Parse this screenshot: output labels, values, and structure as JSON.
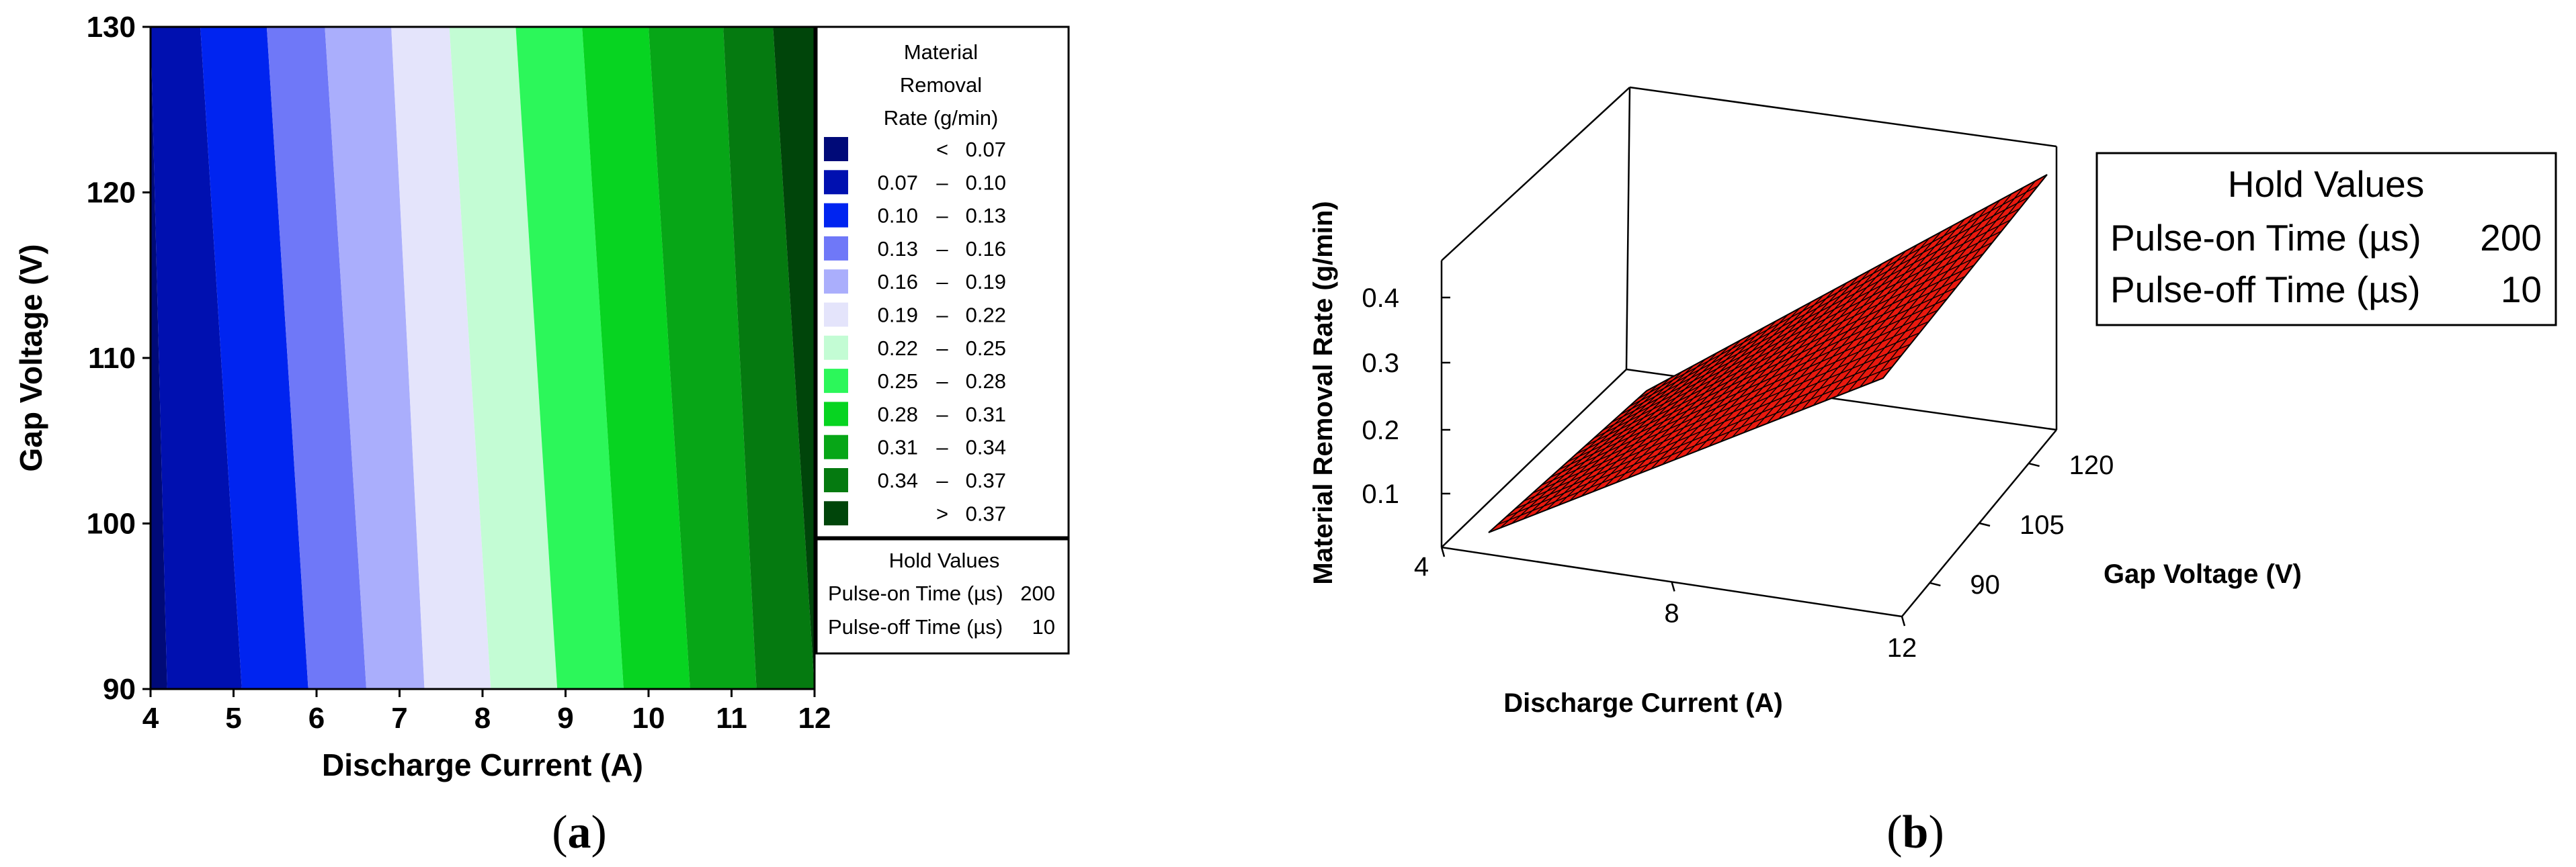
{
  "chart_data": [
    {
      "type": "heatmap",
      "subtype": "contour",
      "panel_label": "(a)",
      "panel_letter": "a",
      "xlabel": "Discharge Current (A)",
      "ylabel": "Gap Voltage (V)",
      "xlim": [
        4,
        12
      ],
      "ylim": [
        90,
        130
      ],
      "x_ticks": [
        "4",
        "5",
        "6",
        "7",
        "8",
        "9",
        "10",
        "11",
        "12"
      ],
      "y_ticks": [
        "90",
        "100",
        "110",
        "120",
        "130"
      ],
      "legend_title": [
        "Material",
        "Removal",
        "Rate (g/min)"
      ],
      "legend": [
        {
          "lo": "",
          "op": "<",
          "hi": "0.07",
          "color": "#000a78"
        },
        {
          "lo": "0.07",
          "op": "–",
          "hi": "0.10",
          "color": "#0010b0"
        },
        {
          "lo": "0.10",
          "op": "–",
          "hi": "0.13",
          "color": "#0024f0"
        },
        {
          "lo": "0.13",
          "op": "–",
          "hi": "0.16",
          "color": "#6f78f8"
        },
        {
          "lo": "0.16",
          "op": "–",
          "hi": "0.19",
          "color": "#aaaefc"
        },
        {
          "lo": "0.19",
          "op": "–",
          "hi": "0.22",
          "color": "#e4e4fb"
        },
        {
          "lo": "0.22",
          "op": "–",
          "hi": "0.25",
          "color": "#c3fcd4"
        },
        {
          "lo": "0.25",
          "op": "–",
          "hi": "0.28",
          "color": "#2cf75a"
        },
        {
          "lo": "0.28",
          "op": "–",
          "hi": "0.31",
          "color": "#07d421"
        },
        {
          "lo": "0.31",
          "op": "–",
          "hi": "0.34",
          "color": "#07a617"
        },
        {
          "lo": "0.34",
          "op": "–",
          "hi": "0.37",
          "color": "#057a10"
        },
        {
          "lo": "",
          "op": ">",
          "hi": "0.37",
          "color": "#00450a"
        }
      ],
      "contour_boundaries": [
        {
          "at_V90": 4.2,
          "at_V130": 4.0
        },
        {
          "at_V90": 5.1,
          "at_V130": 4.6
        },
        {
          "at_V90": 5.9,
          "at_V130": 5.4
        },
        {
          "at_V90": 6.6,
          "at_V130": 6.1
        },
        {
          "at_V90": 7.3,
          "at_V130": 6.9
        },
        {
          "at_V90": 8.1,
          "at_V130": 7.6
        },
        {
          "at_V90": 8.9,
          "at_V130": 8.4
        },
        {
          "at_V90": 9.7,
          "at_V130": 9.2
        },
        {
          "at_V90": 10.5,
          "at_V130": 10.0
        },
        {
          "at_V90": 11.3,
          "at_V130": 10.9
        },
        {
          "at_V90": 12.0,
          "at_V130": 11.5
        }
      ],
      "hold_values": {
        "title": "Hold Values",
        "rows": [
          {
            "label": "Pulse-on Time (µs)",
            "value": "200"
          },
          {
            "label": "Pulse-off Time (µs)",
            "value": "10"
          }
        ]
      }
    },
    {
      "type": "surface",
      "panel_label": "(b)",
      "panel_letter": "b",
      "xlabel": "Discharge Current (A)",
      "ylabel": "Gap Voltage (V)",
      "zlabel": "Material Removal Rate (g/min)",
      "x_ticks": [
        "4",
        "8",
        "12"
      ],
      "y_ticks": [
        "90",
        "105",
        "120"
      ],
      "z_ticks": [
        "0.1",
        "0.2",
        "0.3",
        "0.4"
      ],
      "surface_color": "#e8190f",
      "grid": "wireframe",
      "hold_values": {
        "title": "Hold Values",
        "rows": [
          {
            "label": "Pulse-on Time (µs)",
            "value": "200"
          },
          {
            "label": "Pulse-off Time (µs)",
            "value": "10"
          }
        ]
      }
    }
  ]
}
